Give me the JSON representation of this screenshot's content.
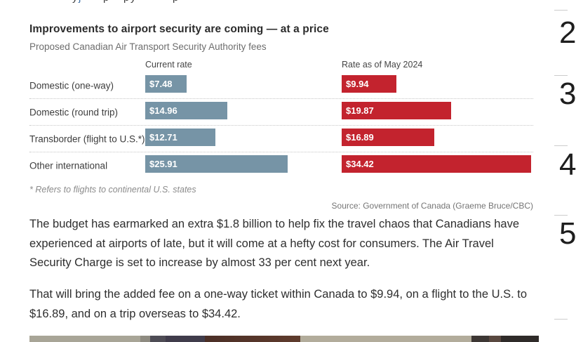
{
  "top_clipped_line": {
    "fragments": [
      {
        "ch": "y",
        "x": 103,
        "color": "#3c3c3c"
      },
      {
        "ch": "j",
        "x": 112,
        "color": "#3b6ea5"
      },
      {
        "ch": "p",
        "x": 147,
        "color": "#3c3c3c"
      },
      {
        "ch": "p",
        "x": 176,
        "color": "#3c3c3c"
      },
      {
        "ch": "y",
        "x": 186,
        "color": "#3c3c3c"
      },
      {
        "ch": "p",
        "x": 246,
        "color": "#3c3c3c"
      }
    ]
  },
  "chart_data": {
    "type": "bar",
    "orientation": "horizontal",
    "title": "Improvements to airport security are coming — at a price",
    "subtitle": "Proposed Canadian Air Transport Security Authority fees",
    "categories": [
      "Domestic (one-way)",
      "Domestic (round trip)",
      "Transborder (flight to U.S.*)",
      "Other international"
    ],
    "series": [
      {
        "name": "Current rate",
        "color": "#7694a6",
        "values": [
          7.48,
          14.96,
          12.71,
          25.91
        ],
        "labels": [
          "$7.48",
          "$14.96",
          "$12.71",
          "$25.91"
        ]
      },
      {
        "name": "Rate as of May 2024",
        "color": "#c3232e",
        "values": [
          9.94,
          19.87,
          16.89,
          34.42
        ],
        "labels": [
          "$9.94",
          "$19.87",
          "$16.89",
          "$34.42"
        ]
      }
    ],
    "xlim": [
      0,
      36
    ],
    "grid": false,
    "value_labels_inside_bars": true,
    "footnote": "* Refers to flights to continental U.S. states",
    "source": "Source: Government of Canada (Graeme Bruce/CBC)"
  },
  "article": {
    "paragraphs": [
      "The budget has earmarked an extra $1.8 billion to help fix the travel chaos that Canadians have experienced at airports of late, but it will come at a hefty cost for consumers. The Air Travel Security Charge is set to increase by almost 33 per cent next year.",
      "That will bring the added fee on a one-way ticket within Canada to $9.94, on a flight to the U.S. to $16.89, and on a trip overseas to $34.42."
    ]
  },
  "sidebar": {
    "list_numbers": [
      "2",
      "3",
      "4",
      "5"
    ]
  }
}
